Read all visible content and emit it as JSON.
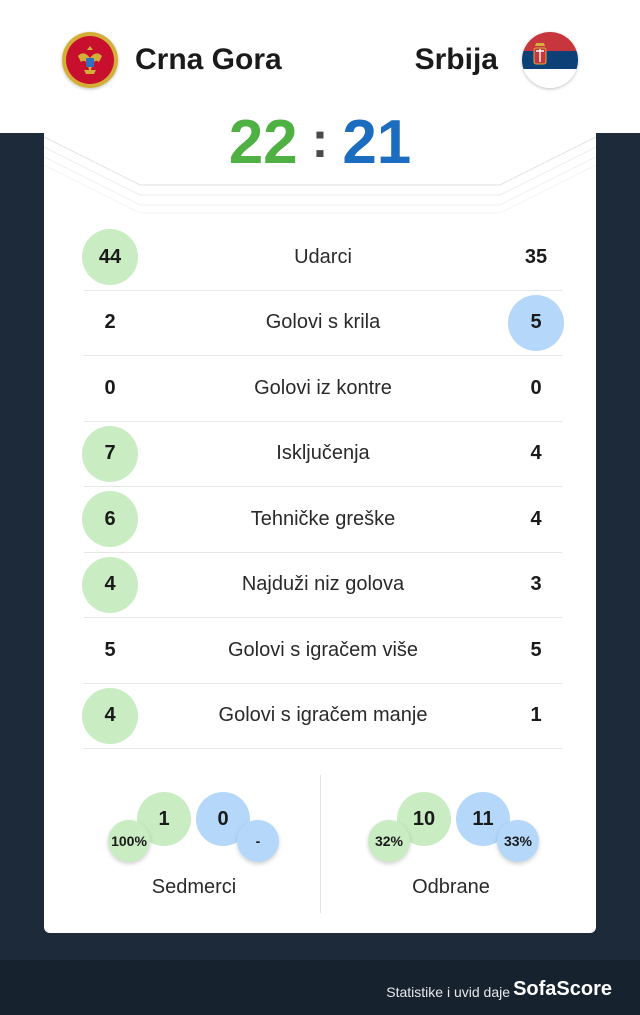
{
  "header": {
    "home": {
      "name": "Crna Gora",
      "flag_icon": "montenegro-flag-icon"
    },
    "away": {
      "name": "Srbija",
      "flag_icon": "serbia-flag-icon"
    }
  },
  "score": {
    "home": "22",
    "separator": ":",
    "away": "21"
  },
  "colors": {
    "home_score": "#4fb043",
    "away_score": "#1c6dbf",
    "home_highlight": "#c9ecc3",
    "away_highlight": "#b5d8fa"
  },
  "stats": [
    {
      "label": "Udarci",
      "home": "44",
      "away": "35",
      "highlight": "home"
    },
    {
      "label": "Golovi s krila",
      "home": "2",
      "away": "5",
      "highlight": "away"
    },
    {
      "label": "Golovi iz kontre",
      "home": "0",
      "away": "0",
      "highlight": "none"
    },
    {
      "label": "Isključenja",
      "home": "7",
      "away": "4",
      "highlight": "home"
    },
    {
      "label": "Tehničke greške",
      "home": "6",
      "away": "4",
      "highlight": "home"
    },
    {
      "label": "Najduži niz golova",
      "home": "4",
      "away": "3",
      "highlight": "home"
    },
    {
      "label": "Golovi s igračem više",
      "home": "5",
      "away": "5",
      "highlight": "none"
    },
    {
      "label": "Golovi s igračem manje",
      "home": "4",
      "away": "1",
      "highlight": "home"
    }
  ],
  "sedmerci": {
    "label": "Sedmerci",
    "home_value": "1",
    "away_value": "0",
    "home_pct": "100%",
    "away_pct": "-"
  },
  "odbrane": {
    "label": "Odbrane",
    "home_value": "10",
    "away_value": "11",
    "home_pct": "32%",
    "away_pct": "33%"
  },
  "footer": {
    "text": "Statistike i uvid daje",
    "brand": "SofaScore"
  }
}
